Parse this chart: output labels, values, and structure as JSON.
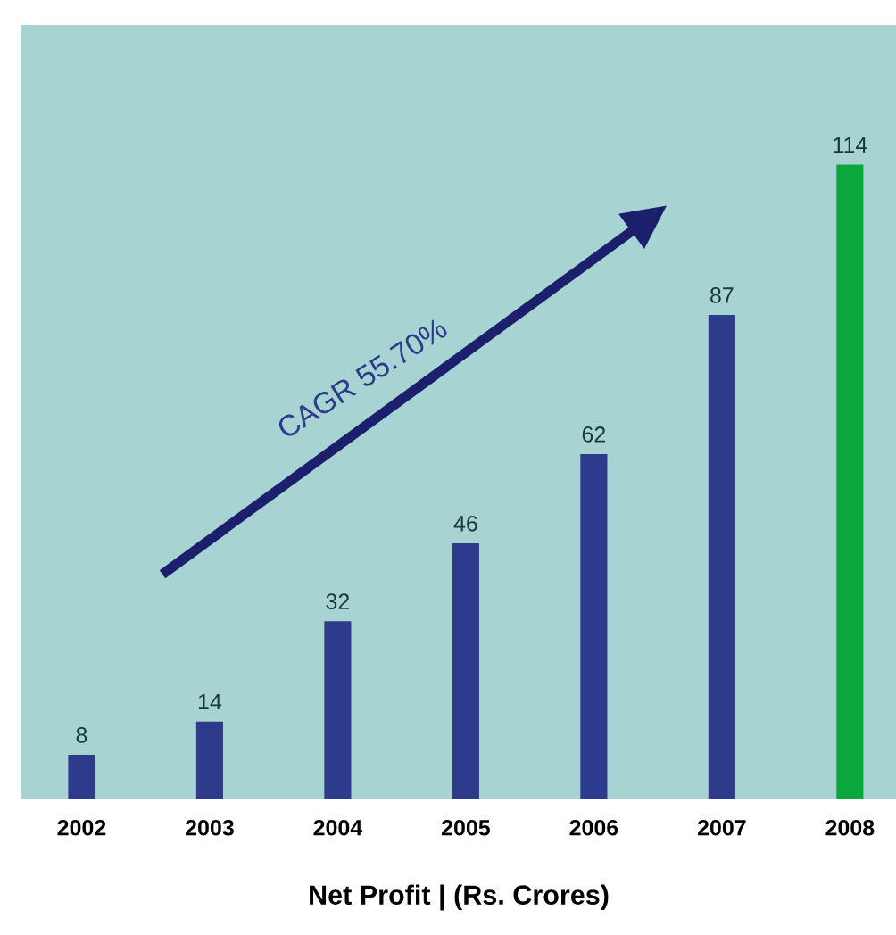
{
  "chart_data": {
    "type": "bar",
    "xlabel": "Net Profit | (Rs. Crores)",
    "categories": [
      "2002",
      "2003",
      "2004",
      "2005",
      "2006",
      "2007",
      "2008"
    ],
    "values": [
      8,
      14,
      32,
      46,
      62,
      87,
      114
    ],
    "colors": [
      "#2e3a8c",
      "#2e3a8c",
      "#2e3a8c",
      "#2e3a8c",
      "#2e3a8c",
      "#2e3a8c",
      "#0aa83c"
    ],
    "data_labels": true,
    "annotations": [
      "CAGR 55.70%"
    ],
    "grid": false,
    "legend": false
  }
}
